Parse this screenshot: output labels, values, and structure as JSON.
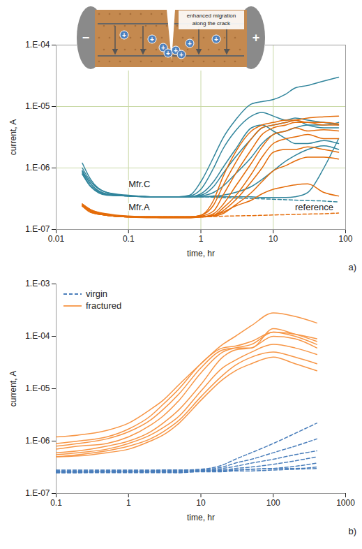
{
  "chart_data": [
    {
      "type": "line",
      "panel": "a)",
      "xlabel": "time, hr",
      "ylabel": "current, A",
      "log": true,
      "grid": true,
      "xlim": [
        0.01,
        100
      ],
      "xticks": [
        0.01,
        0.1,
        1,
        10,
        100
      ],
      "ylim": [
        1e-07,
        0.0001
      ],
      "yticks": [
        {
          "value": 1e-07,
          "label": "1.E-07"
        },
        {
          "value": 1e-06,
          "label": "1.E-06"
        },
        {
          "value": 1e-05,
          "label": "1.E-05"
        },
        {
          "value": 0.0001,
          "label": "1.E-04"
        }
      ],
      "x": [
        0.023,
        0.03,
        0.05,
        0.1,
        0.2,
        0.3,
        0.5,
        0.7,
        1,
        1.5,
        2,
        3,
        5,
        7,
        10,
        15,
        20,
        30,
        50,
        80
      ],
      "series": [
        {
          "name": "Mfr.C",
          "color": "#31859c",
          "line_style": "solid",
          "values": [
            1e-06,
            6e-07,
            4e-07,
            3.5e-07,
            3.4e-07,
            3.4e-07,
            3.4e-07,
            3.6e-07,
            6e-07,
            1.5e-06,
            3e-06,
            6e-06,
            1.1e-05,
            1.2e-05,
            1.3e-05,
            1.6e-05,
            2e-05,
            2.2e-05,
            2.6e-05,
            3e-05
          ]
        },
        {
          "name": "Mfr.C",
          "color": "#31859c",
          "line_style": "solid",
          "values": [
            9e-07,
            5.5e-07,
            3.8e-07,
            3.5e-07,
            3.4e-07,
            3.4e-07,
            3.4e-07,
            3.5e-07,
            4.5e-07,
            1e-06,
            2e-06,
            4e-06,
            7e-06,
            8e-06,
            7e-06,
            6e-06,
            6.5e-06,
            6e-06,
            5.5e-06,
            5e-06
          ]
        },
        {
          "name": "Mfr.C",
          "color": "#31859c",
          "line_style": "solid",
          "values": [
            8e-07,
            5e-07,
            3.7e-07,
            3.5e-07,
            3.4e-07,
            3.4e-07,
            3.4e-07,
            3.4e-07,
            3.8e-07,
            6e-07,
            1e-06,
            2e-06,
            4.5e-06,
            5e-06,
            4e-06,
            3e-06,
            2.5e-06,
            2.5e-06,
            2.8e-06,
            2.5e-06
          ]
        },
        {
          "name": "Mfr.C",
          "color": "#31859c",
          "line_style": "solid",
          "values": [
            8.5e-07,
            5e-07,
            3.7e-07,
            3.5e-07,
            3.4e-07,
            3.4e-07,
            3.4e-07,
            3.4e-07,
            3.5e-07,
            4e-07,
            5e-07,
            8e-07,
            1.5e-06,
            2.5e-06,
            3.5e-06,
            4e-06,
            4.5e-06,
            5e-06,
            5e-06,
            5.5e-06
          ]
        },
        {
          "name": "Mfr.C",
          "color": "#31859c",
          "line_style": "solid",
          "values": [
            8e-07,
            5e-07,
            3.6e-07,
            3.5e-07,
            3.4e-07,
            3.4e-07,
            3.4e-07,
            3.4e-07,
            3.4e-07,
            3.5e-07,
            3.6e-07,
            4e-07,
            5e-07,
            6.5e-07,
            9e-07,
            1.3e-06,
            1.6e-06,
            2e-06,
            2.3e-06,
            2e-06
          ]
        },
        {
          "name": "Mfr.C",
          "color": "#31859c",
          "line_style": "solid",
          "values": [
            9e-07,
            5.5e-07,
            3.7e-07,
            3.5e-07,
            3.4e-07,
            3.4e-07,
            3.4e-07,
            3.4e-07,
            3.4e-07,
            3.4e-07,
            3.4e-07,
            3.4e-07,
            3.4e-07,
            3.3e-07,
            3.3e-07,
            3.3e-07,
            3.4e-07,
            4e-07,
            1e-06,
            3e-06
          ]
        },
        {
          "name": "Mfr.C",
          "color": "#31859c",
          "line_style": "solid",
          "values": [
            1.2e-06,
            6.5e-07,
            4e-07,
            3.6e-07,
            3.4e-07,
            3.4e-07,
            3.4e-07,
            3.4e-07,
            3.6e-07,
            5e-07,
            8e-07,
            1.5e-06,
            3e-06,
            4.5e-06,
            5e-06,
            5.5e-06,
            6e-06,
            5e-06,
            4.5e-06,
            4.5e-06
          ]
        },
        {
          "name": "reference",
          "color": "#31859c",
          "line_style": "dashed",
          "values": [
            9e-07,
            5.5e-07,
            3.7e-07,
            3.5e-07,
            3.4e-07,
            3.4e-07,
            3.4e-07,
            3.4e-07,
            3.4e-07,
            3.35e-07,
            3.3e-07,
            3.25e-07,
            3.2e-07,
            3.15e-07,
            3.1e-07,
            3.05e-07,
            3e-07,
            2.95e-07,
            2.9e-07,
            2.8e-07
          ]
        },
        {
          "name": "Mfr.A",
          "color": "#e46c0a",
          "line_style": "solid",
          "values": [
            2.6e-07,
            2.1e-07,
            1.8e-07,
            1.65e-07,
            1.6e-07,
            1.6e-07,
            1.6e-07,
            1.6e-07,
            1.7e-07,
            2.5e-07,
            5e-07,
            1.2e-06,
            3e-06,
            4.5e-06,
            5e-06,
            5.5e-06,
            6e-06,
            6.5e-06,
            6.8e-06,
            7e-06
          ]
        },
        {
          "name": "Mfr.A",
          "color": "#e46c0a",
          "line_style": "solid",
          "values": [
            2.5e-07,
            2e-07,
            1.75e-07,
            1.6e-07,
            1.6e-07,
            1.6e-07,
            1.6e-07,
            1.6e-07,
            1.65e-07,
            2e-07,
            3.5e-07,
            8e-07,
            2e-06,
            3.5e-06,
            4.5e-06,
            5e-06,
            5.5e-06,
            5.5e-06,
            5e-06,
            5e-06
          ]
        },
        {
          "name": "Mfr.A",
          "color": "#e46c0a",
          "line_style": "solid",
          "values": [
            2.4e-07,
            2e-07,
            1.7e-07,
            1.6e-07,
            1.6e-07,
            1.6e-07,
            1.6e-07,
            1.6e-07,
            1.6e-07,
            1.8e-07,
            2.5e-07,
            5e-07,
            1.2e-06,
            2.2e-06,
            3.5e-06,
            4e-06,
            4.5e-06,
            4e-06,
            4.2e-06,
            4e-06
          ]
        },
        {
          "name": "Mfr.A",
          "color": "#e46c0a",
          "line_style": "solid",
          "values": [
            2.4e-07,
            1.9e-07,
            1.7e-07,
            1.6e-07,
            1.6e-07,
            1.55e-07,
            1.55e-07,
            1.55e-07,
            1.6e-07,
            1.7e-07,
            2.2e-07,
            3.5e-07,
            8e-07,
            1.5e-06,
            2.5e-06,
            3e-06,
            3.2e-06,
            3.5e-06,
            3e-06,
            3e-06
          ]
        },
        {
          "name": "Mfr.A",
          "color": "#e46c0a",
          "line_style": "solid",
          "values": [
            2.5e-07,
            2e-07,
            1.7e-07,
            1.6e-07,
            1.6e-07,
            1.6e-07,
            1.6e-07,
            1.6e-07,
            1.6e-07,
            1.7e-07,
            2e-07,
            3e-07,
            6e-07,
            1e-06,
            1.8e-06,
            2e-06,
            2e-06,
            2.2e-06,
            2e-06,
            1.8e-06
          ]
        },
        {
          "name": "Mfr.A",
          "color": "#e46c0a",
          "line_style": "solid",
          "values": [
            2.4e-07,
            1.9e-07,
            1.7e-07,
            1.6e-07,
            1.55e-07,
            1.55e-07,
            1.55e-07,
            1.55e-07,
            1.6e-07,
            1.65e-07,
            1.8e-07,
            2.5e-07,
            4e-07,
            6e-07,
            9e-07,
            1.1e-06,
            1.3e-06,
            1.5e-06,
            1.5e-06,
            1.4e-06
          ]
        },
        {
          "name": "Mfr.A",
          "color": "#e46c0a",
          "line_style": "solid",
          "values": [
            2.5e-07,
            2e-07,
            1.7e-07,
            1.6e-07,
            1.6e-07,
            1.6e-07,
            1.6e-07,
            1.6e-07,
            1.6e-07,
            1.7e-07,
            1.9e-07,
            2.4e-07,
            3e-07,
            3.8e-07,
            4.5e-07,
            5e-07,
            5.3e-07,
            5.5e-07,
            4e-07,
            3.5e-07
          ]
        },
        {
          "name": "Mfr.A",
          "color": "#e46c0a",
          "line_style": "solid",
          "values": [
            2.6e-07,
            2.1e-07,
            1.75e-07,
            1.6e-07,
            1.6e-07,
            1.6e-07,
            1.6e-07,
            1.6e-07,
            1.7e-07,
            3e-07,
            7e-07,
            1.8e-06,
            4e-06,
            5e-06,
            5.5e-06,
            6e-06,
            6e-06,
            5.5e-06,
            5.5e-06,
            5.2e-06
          ]
        },
        {
          "name": "reference",
          "color": "#e46c0a",
          "line_style": "dashed",
          "values": [
            2.5e-07,
            2e-07,
            1.7e-07,
            1.6e-07,
            1.6e-07,
            1.6e-07,
            1.6e-07,
            1.6e-07,
            1.6e-07,
            1.62e-07,
            1.64e-07,
            1.66e-07,
            1.68e-07,
            1.7e-07,
            1.72e-07,
            1.74e-07,
            1.76e-07,
            1.78e-07,
            1.8e-07,
            1.85e-07
          ]
        }
      ],
      "annotations": [
        {
          "text": "Mfr.C",
          "x": 0.1,
          "y": 5.5e-07
        },
        {
          "text": "Mfr.A",
          "x": 0.1,
          "y": 2.3e-07
        },
        {
          "text": "reference",
          "x": 20,
          "y": 2.3e-07
        }
      ],
      "inset": {
        "left_electrode": "−",
        "right_electrode": "+",
        "ion": "+",
        "note": "enhanced migration along the crack"
      }
    },
    {
      "type": "line",
      "panel": "b)",
      "xlabel": "time, hr",
      "ylabel": "current, A",
      "log": true,
      "grid": false,
      "legend": "upper left",
      "xlim": [
        0.1,
        1000
      ],
      "xticks": [
        0.1,
        1,
        10,
        100,
        1000
      ],
      "ylim": [
        1e-07,
        0.001
      ],
      "yticks": [
        {
          "value": 1e-07,
          "label": "1.E-07"
        },
        {
          "value": 1e-06,
          "label": "1.E-06"
        },
        {
          "value": 1e-05,
          "label": "1.E-05"
        },
        {
          "value": 0.0001,
          "label": "1.E-04"
        },
        {
          "value": 0.001,
          "label": "1.E-03"
        }
      ],
      "x": [
        0.1,
        0.2,
        0.5,
        1,
        2,
        3,
        5,
        10,
        20,
        30,
        50,
        100,
        200,
        400
      ],
      "series": [
        {
          "name": "virgin",
          "color": "#4a7ebb",
          "line_style": "dashed",
          "values": [
            2.7e-07,
            2.7e-07,
            2.7e-07,
            2.7e-07,
            2.7e-07,
            2.8e-07,
            2.8e-07,
            2.9e-07,
            3.5e-07,
            4.5e-07,
            6e-07,
            9e-07,
            1.4e-06,
            2.2e-06
          ]
        },
        {
          "name": "virgin",
          "color": "#4a7ebb",
          "line_style": "dashed",
          "values": [
            2.6e-07,
            2.6e-07,
            2.7e-07,
            2.7e-07,
            2.7e-07,
            2.7e-07,
            2.7e-07,
            2.8e-07,
            3.2e-07,
            3.8e-07,
            4.5e-07,
            6e-07,
            8e-07,
            1.1e-06
          ]
        },
        {
          "name": "virgin",
          "color": "#4a7ebb",
          "line_style": "dashed",
          "values": [
            2.7e-07,
            2.7e-07,
            2.7e-07,
            2.7e-07,
            2.7e-07,
            2.7e-07,
            2.7e-07,
            2.7e-07,
            3e-07,
            3.3e-07,
            3.8e-07,
            4.5e-07,
            5.5e-07,
            6.5e-07
          ]
        },
        {
          "name": "virgin",
          "color": "#4a7ebb",
          "line_style": "dashed",
          "values": [
            2.5e-07,
            2.5e-07,
            2.6e-07,
            2.6e-07,
            2.6e-07,
            2.6e-07,
            2.6e-07,
            2.7e-07,
            2.8e-07,
            3e-07,
            3.2e-07,
            3.6e-07,
            4.2e-07,
            5e-07
          ]
        },
        {
          "name": "virgin",
          "color": "#4a7ebb",
          "line_style": "dashed",
          "values": [
            2.6e-07,
            2.6e-07,
            2.6e-07,
            2.6e-07,
            2.6e-07,
            2.6e-07,
            2.5e-07,
            2.7e-07,
            2.7e-07,
            2.8e-07,
            2.9e-07,
            3e-07,
            3.3e-07,
            3.8e-07
          ]
        },
        {
          "name": "virgin",
          "color": "#4a7ebb",
          "line_style": "dashed",
          "values": [
            2.8e-07,
            2.8e-07,
            2.8e-07,
            2.8e-07,
            2.8e-07,
            2.8e-07,
            2.8e-07,
            2.8e-07,
            2.8e-07,
            2.8e-07,
            2.9e-07,
            3e-07,
            3e-07,
            3.2e-07
          ]
        },
        {
          "name": "virgin",
          "color": "#4a7ebb",
          "line_style": "dashed",
          "values": [
            2.5e-07,
            2.5e-07,
            2.5e-07,
            2.5e-07,
            2.5e-07,
            2.5e-07,
            2.5e-07,
            2.6e-07,
            2.6e-07,
            2.7e-07,
            2.7e-07,
            2.8e-07,
            2.9e-07,
            3e-07
          ]
        },
        {
          "name": "fractured",
          "color": "#f79646",
          "line_style": "solid",
          "values": [
            1.2e-06,
            1.3e-06,
            1.6e-06,
            2.2e-06,
            4e-06,
            6e-06,
            1.2e-05,
            3e-05,
            7e-05,
            0.0001,
            0.00016,
            0.00028,
            0.00024,
            0.00018
          ]
        },
        {
          "name": "fractured",
          "color": "#f79646",
          "line_style": "solid",
          "values": [
            8e-07,
            9e-07,
            1.1e-06,
            1.5e-06,
            2.5e-06,
            4e-06,
            8e-06,
            2.5e-05,
            5.5e-05,
            6e-05,
            6e-05,
            0.00014,
            0.00011,
            8e-05
          ]
        },
        {
          "name": "fractured",
          "color": "#f79646",
          "line_style": "solid",
          "values": [
            7e-07,
            8e-07,
            9e-07,
            1.2e-06,
            2e-06,
            3e-06,
            6e-06,
            2e-05,
            5e-05,
            6e-05,
            7e-05,
            0.00012,
            0.0001,
            7e-05
          ]
        },
        {
          "name": "fractured",
          "color": "#f79646",
          "line_style": "solid",
          "values": [
            6e-07,
            6.5e-07,
            8e-07,
            1e-06,
            1.5e-06,
            2.2e-06,
            4e-06,
            1.2e-05,
            4e-05,
            5.5e-05,
            6e-05,
            0.0001,
            9e-05,
            6e-05
          ]
        },
        {
          "name": "fractured",
          "color": "#f79646",
          "line_style": "solid",
          "values": [
            5.5e-07,
            6e-07,
            7e-07,
            9e-07,
            1.3e-06,
            1.8e-06,
            3e-06,
            9e-06,
            2.5e-05,
            3.5e-05,
            5e-05,
            7e-05,
            6e-05,
            4.5e-05
          ]
        },
        {
          "name": "fractured",
          "color": "#f79646",
          "line_style": "solid",
          "values": [
            5e-07,
            5.5e-07,
            6.5e-07,
            8e-07,
            1.1e-06,
            1.5e-06,
            2.5e-06,
            7e-06,
            1.8e-05,
            2.8e-05,
            4e-05,
            5e-05,
            4e-05,
            3e-05
          ]
        },
        {
          "name": "fractured",
          "color": "#f79646",
          "line_style": "solid",
          "values": [
            5e-07,
            5.2e-07,
            6e-07,
            7e-07,
            1e-06,
            1.3e-06,
            2.2e-06,
            6e-06,
            1.5e-05,
            2.2e-05,
            3e-05,
            4e-05,
            3e-05,
            2.2e-05
          ]
        },
        {
          "name": "fractured",
          "color": "#f79646",
          "line_style": "solid",
          "values": [
            9e-07,
            1e-06,
            1.2e-06,
            1.7e-06,
            3e-06,
            5e-06,
            1e-05,
            3e-05,
            6e-05,
            6.5e-05,
            8e-05,
            0.00012,
            0.00011,
            9e-05
          ]
        }
      ]
    }
  ]
}
